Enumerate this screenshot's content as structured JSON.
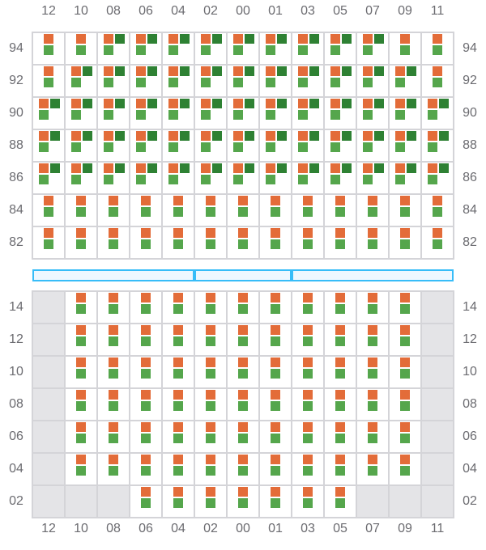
{
  "legend_codes": {
    "0": "unavailable",
    "1": "orange + light green",
    "2": "orange + light green + dark green"
  },
  "colors": {
    "orange": "#e36c39",
    "light_green": "#55a64c",
    "dark_green": "#2e8133",
    "unavailable": "#e4e4e7",
    "divider": "#38bdf8"
  },
  "columns": [
    "12",
    "10",
    "08",
    "06",
    "04",
    "02",
    "00",
    "01",
    "03",
    "05",
    "07",
    "09",
    "11"
  ],
  "top_section": {
    "rows": [
      {
        "label": "94",
        "cells": [
          1,
          1,
          2,
          2,
          2,
          2,
          2,
          2,
          2,
          2,
          2,
          1,
          1
        ]
      },
      {
        "label": "92",
        "cells": [
          1,
          2,
          2,
          2,
          2,
          2,
          2,
          2,
          2,
          2,
          2,
          2,
          1
        ]
      },
      {
        "label": "90",
        "cells": [
          2,
          2,
          2,
          2,
          2,
          2,
          2,
          2,
          2,
          2,
          2,
          2,
          2
        ]
      },
      {
        "label": "88",
        "cells": [
          2,
          2,
          2,
          2,
          2,
          2,
          2,
          2,
          2,
          2,
          2,
          2,
          2
        ]
      },
      {
        "label": "86",
        "cells": [
          2,
          2,
          2,
          2,
          2,
          2,
          2,
          2,
          2,
          2,
          2,
          2,
          2
        ]
      },
      {
        "label": "84",
        "cells": [
          1,
          1,
          1,
          1,
          1,
          1,
          1,
          1,
          1,
          1,
          1,
          1,
          1
        ]
      },
      {
        "label": "82",
        "cells": [
          1,
          1,
          1,
          1,
          1,
          1,
          1,
          1,
          1,
          1,
          1,
          1,
          1
        ]
      }
    ]
  },
  "divider_segments": [
    5,
    3,
    5
  ],
  "bottom_section": {
    "rows": [
      {
        "label": "14",
        "cells": [
          0,
          1,
          1,
          1,
          1,
          1,
          1,
          1,
          1,
          1,
          1,
          1,
          0
        ]
      },
      {
        "label": "12",
        "cells": [
          0,
          1,
          1,
          1,
          1,
          1,
          1,
          1,
          1,
          1,
          1,
          1,
          0
        ]
      },
      {
        "label": "10",
        "cells": [
          0,
          1,
          1,
          1,
          1,
          1,
          1,
          1,
          1,
          1,
          1,
          1,
          0
        ]
      },
      {
        "label": "08",
        "cells": [
          0,
          1,
          1,
          1,
          1,
          1,
          1,
          1,
          1,
          1,
          1,
          1,
          0
        ]
      },
      {
        "label": "06",
        "cells": [
          0,
          1,
          1,
          1,
          1,
          1,
          1,
          1,
          1,
          1,
          1,
          1,
          0
        ]
      },
      {
        "label": "04",
        "cells": [
          0,
          1,
          1,
          1,
          1,
          1,
          1,
          1,
          1,
          1,
          1,
          1,
          0
        ]
      },
      {
        "label": "02",
        "cells": [
          0,
          0,
          0,
          1,
          1,
          1,
          1,
          1,
          1,
          1,
          0,
          0,
          0
        ]
      }
    ]
  }
}
